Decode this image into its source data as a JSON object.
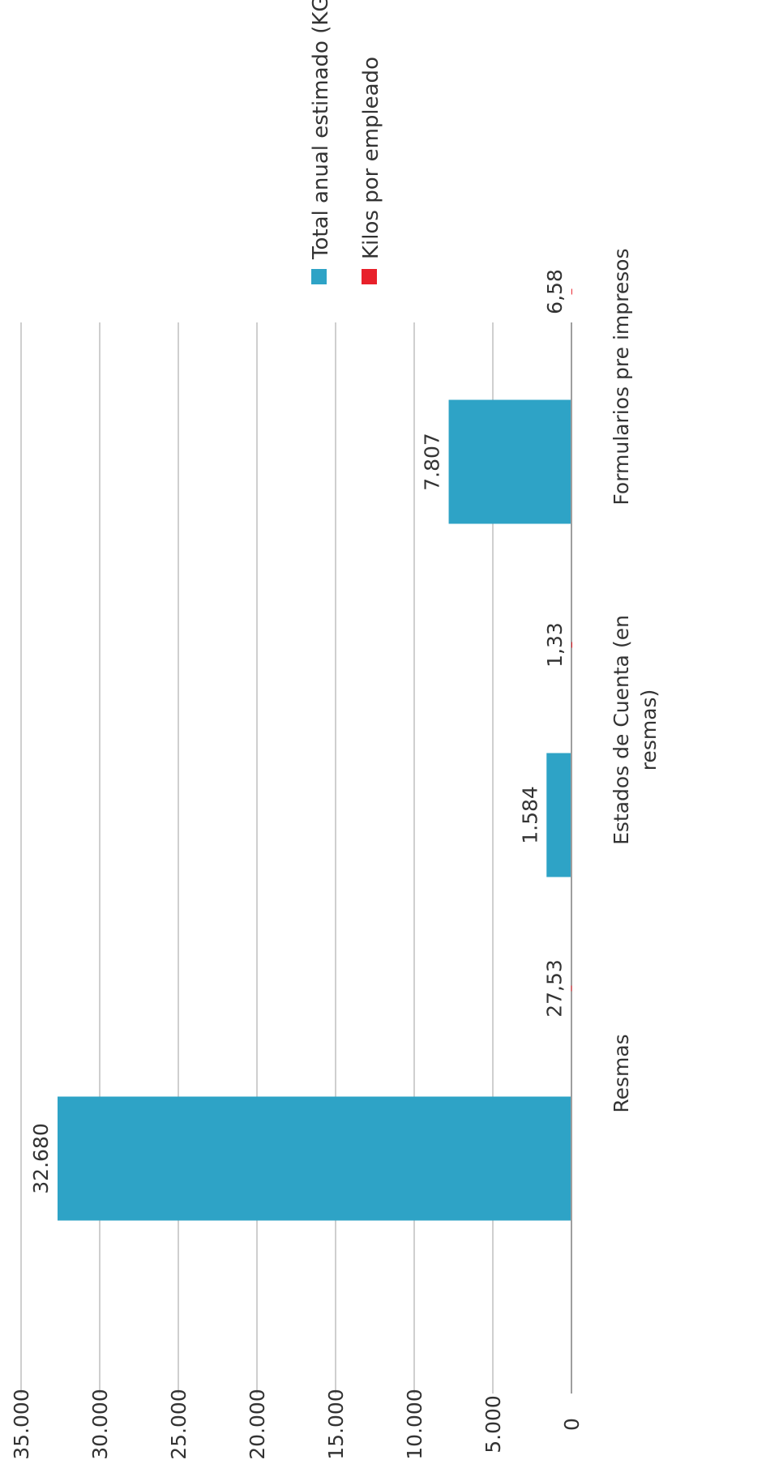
{
  "chart_data": {
    "type": "bar",
    "categories": [
      "Resmas",
      "Estados de Cuenta (en resmas)",
      "Formularios pre impresos"
    ],
    "category_lines": [
      [
        "Resmas"
      ],
      [
        "Estados de Cuenta (en",
        "resmas)"
      ],
      [
        "Formularios pre impresos"
      ]
    ],
    "series": [
      {
        "name": "Total anual estimado (KG)",
        "values": [
          32680,
          1584,
          7807
        ],
        "labels": [
          "32.680",
          "1.584",
          "7.807"
        ],
        "color": "#2ea3c6"
      },
      {
        "name": "Kilos por empleado",
        "values": [
          27.53,
          1.33,
          6.58
        ],
        "labels": [
          "27,53",
          "1,33",
          "6,58"
        ],
        "color": "#e8202a"
      }
    ],
    "ylim": [
      0,
      35000
    ],
    "yticks": [
      0,
      5000,
      10000,
      15000,
      20000,
      25000,
      30000,
      35000
    ],
    "ytick_labels": [
      "0",
      "5.000",
      "10.000",
      "15.000",
      "20.000",
      "25.000",
      "30.000",
      "35.000"
    ],
    "grid": true,
    "legend_position": "right",
    "orientation": "rotated 90° counter-clockwise",
    "gridline_color": "#bfbfbf",
    "axis_color": "#7f7f7f"
  }
}
